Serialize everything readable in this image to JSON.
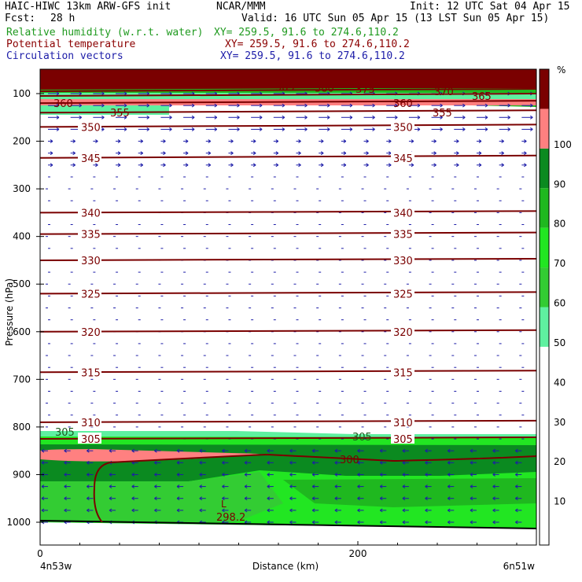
{
  "header": {
    "model_line": "HAIC-HIWC 13km ARW-GFS init",
    "org": "NCAR/MMM",
    "init": "Init: 12 UTC Sat 04 Apr 15",
    "fcst_label": "Fcst:",
    "fcst_value": "28 h",
    "valid": "Valid: 16 UTC Sun 05 Apr 15 (13 LST Sun 05 Apr 15)",
    "fields": [
      {
        "name": "Relative humidity (w.r.t. water)",
        "xy": "XY= 259.5, 91.6 to 274.6,110.2",
        "color": "#1f9a1f"
      },
      {
        "name": "Potential temperature",
        "xy": "XY= 259.5, 91.6 to 274.6,110.2",
        "color": "#8b0000"
      },
      {
        "name": "Circulation vectors",
        "xy": "XY= 259.5, 91.6 to 274.6,110.2",
        "color": "#1c1ca8"
      }
    ]
  },
  "chart_data": {
    "type": "cross-section",
    "ylabel": "Pressure (hPa)",
    "xlabel": "Distance (km)",
    "y_ticks": [
      100,
      200,
      300,
      400,
      500,
      600,
      700,
      800,
      900,
      1000
    ],
    "x_ticks": [
      0,
      200
    ],
    "x_end_labels": {
      "left": "4n53w",
      "right": "6n51w"
    },
    "colorbar": {
      "unit": "%",
      "labels": [
        10,
        20,
        30,
        40,
        50,
        60,
        70,
        80,
        90,
        100
      ],
      "levels": [
        {
          "min": 50,
          "max": 60,
          "color": "#5ff0a0"
        },
        {
          "min": 60,
          "max": 70,
          "color": "#33cc33"
        },
        {
          "min": 70,
          "max": 80,
          "color": "#22e622"
        },
        {
          "min": 80,
          "max": 90,
          "color": "#1fb81f"
        },
        {
          "min": 90,
          "max": 100,
          "color": "#0b8a20"
        },
        {
          "min": 100,
          "max": 110,
          "color": "#ff8080"
        },
        {
          "min": 110,
          "max": 120,
          "color": "#7a0000"
        }
      ]
    },
    "theta_contours": [
      {
        "value": 300,
        "pressure": 870,
        "label": "300"
      },
      {
        "value": 305,
        "pressure": 825,
        "label": "305"
      },
      {
        "value": 310,
        "pressure": 790,
        "label": "310"
      },
      {
        "value": 315,
        "pressure": 685,
        "label": "315"
      },
      {
        "value": 320,
        "pressure": 600,
        "label": "320"
      },
      {
        "value": 325,
        "pressure": 520,
        "label": "325"
      },
      {
        "value": 330,
        "pressure": 450,
        "label": "330"
      },
      {
        "value": 335,
        "pressure": 395,
        "label": "335"
      },
      {
        "value": 340,
        "pressure": 350,
        "label": "340"
      },
      {
        "value": 345,
        "pressure": 235,
        "label": "345"
      },
      {
        "value": 350,
        "pressure": 170,
        "label": "350"
      },
      {
        "value": 355,
        "pressure": 140,
        "label": "355"
      },
      {
        "value": 360,
        "pressure": 120,
        "label": "360"
      },
      {
        "value": 365,
        "pressure": 105,
        "label": "365"
      },
      {
        "value": 370,
        "pressure": 95,
        "label": "370"
      },
      {
        "value": 375,
        "pressure": 90,
        "label": "375"
      },
      {
        "value": 380,
        "pressure": 88,
        "label": "380"
      },
      {
        "value": 385,
        "pressure": 85,
        "label": "385"
      }
    ],
    "min_label": {
      "text": "298.2",
      "marker": "L"
    }
  }
}
